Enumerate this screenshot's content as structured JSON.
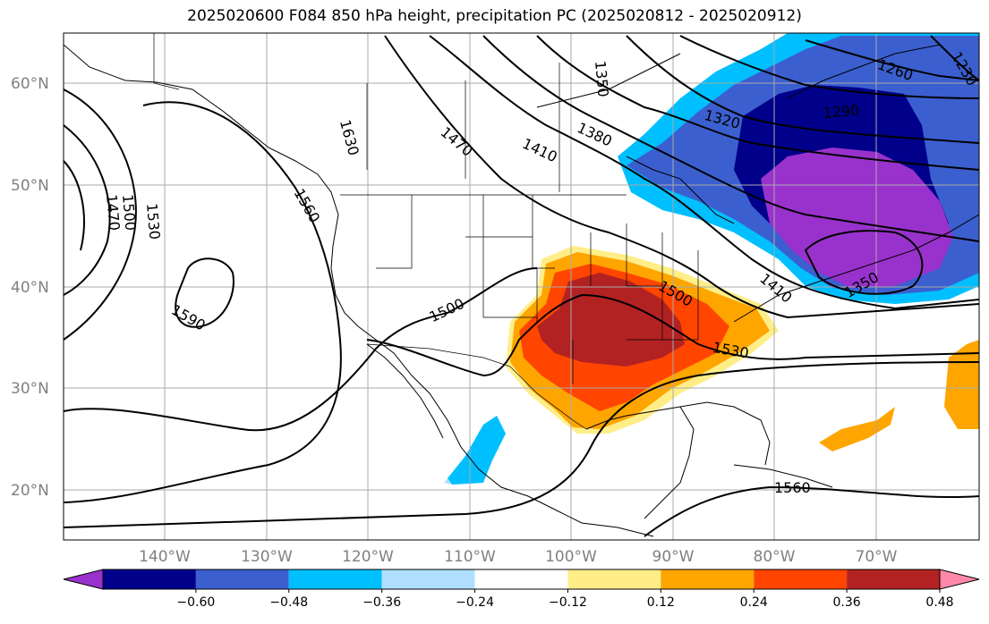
{
  "title": "2025020600 F084 850 hPa height, precipitation PC (2025020812 - 2025020912)",
  "lat_ticks": [
    "60°N",
    "50°N",
    "40°N",
    "30°N",
    "20°N"
  ],
  "lon_ticks": [
    "140°W",
    "130°W",
    "120°W",
    "110°W",
    "100°W",
    "90°W",
    "80°W",
    "70°W"
  ],
  "contour_labels": [
    "1230",
    "1260",
    "1290",
    "1320",
    "1350",
    "1380",
    "1410",
    "1410",
    "1470",
    "1470",
    "1500",
    "1500",
    "1530",
    "1530",
    "1560",
    "1560",
    "1590",
    "1630",
    "1350",
    "1470",
    "1500",
    "1530"
  ],
  "colorbar": {
    "ticks": [
      "−0.60",
      "−0.48",
      "−0.36",
      "−0.24",
      "−0.12",
      "0.12",
      "0.24",
      "0.36",
      "0.48",
      "0.60"
    ],
    "colors": [
      "#9932cc",
      "#00008b",
      "#3b5fcf",
      "#00bfff",
      "#b0e0ff",
      "#ffffff",
      "#ffee88",
      "#ffa500",
      "#ff4500",
      "#b22222",
      "#ff88aa"
    ]
  }
}
